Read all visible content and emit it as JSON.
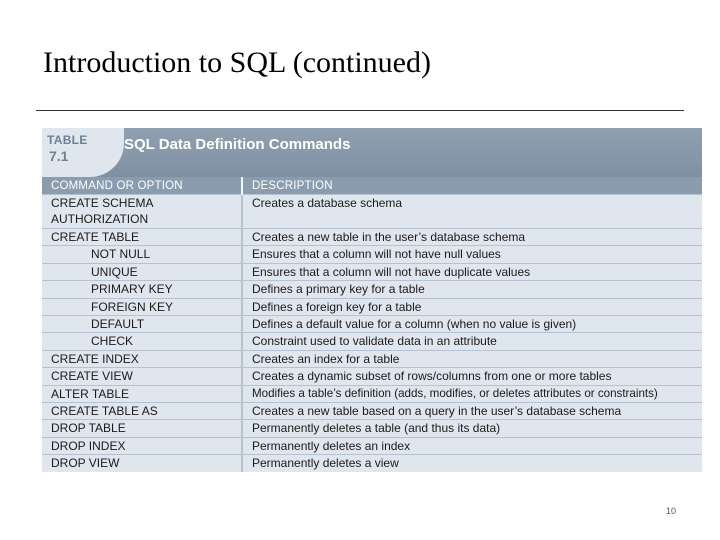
{
  "slide": {
    "title": "Introduction to SQL (continued)",
    "page_number": "10"
  },
  "table": {
    "tag_word": "TABLE",
    "tag_number": "7.1",
    "caption": "SQL Data Definition Commands",
    "columns": [
      "COMMAND OR OPTION",
      "DESCRIPTION"
    ],
    "rows": [
      {
        "command": "CREATE SCHEMA AUTHORIZATION",
        "description": "Creates a database schema"
      },
      {
        "command": "CREATE TABLE",
        "description": "Creates a new table in the user’s database schema"
      },
      {
        "command": "NOT NULL",
        "description": "Ensures that a column will not have null values"
      },
      {
        "command": "UNIQUE",
        "description": "Ensures that a column will not have duplicate values"
      },
      {
        "command": "PRIMARY KEY",
        "description": "Defines a primary key for a table"
      },
      {
        "command": "FOREIGN KEY",
        "description": "Defines a foreign key for a table"
      },
      {
        "command": "DEFAULT",
        "description": "Defines a default value for a column (when no value is given)"
      },
      {
        "command": "CHECK",
        "description": "Constraint used to validate data in an attribute"
      },
      {
        "command": "CREATE INDEX",
        "description": "Creates an index for a table"
      },
      {
        "command": "CREATE VIEW",
        "description": "Creates a dynamic subset of rows/columns from one or more tables"
      },
      {
        "command": "ALTER TABLE",
        "description": "Modifies a table’s definition (adds, modifies, or deletes attributes or constraints)"
      },
      {
        "command": "CREATE TABLE AS",
        "description": "Creates a new table based on a query in the user’s database schema"
      },
      {
        "command": "DROP TABLE",
        "description": "Permanently deletes a table (and thus its data)"
      },
      {
        "command": "DROP INDEX",
        "description": "Permanently deletes an index"
      },
      {
        "command": "DROP VIEW",
        "description": "Permanently deletes a view"
      }
    ]
  }
}
